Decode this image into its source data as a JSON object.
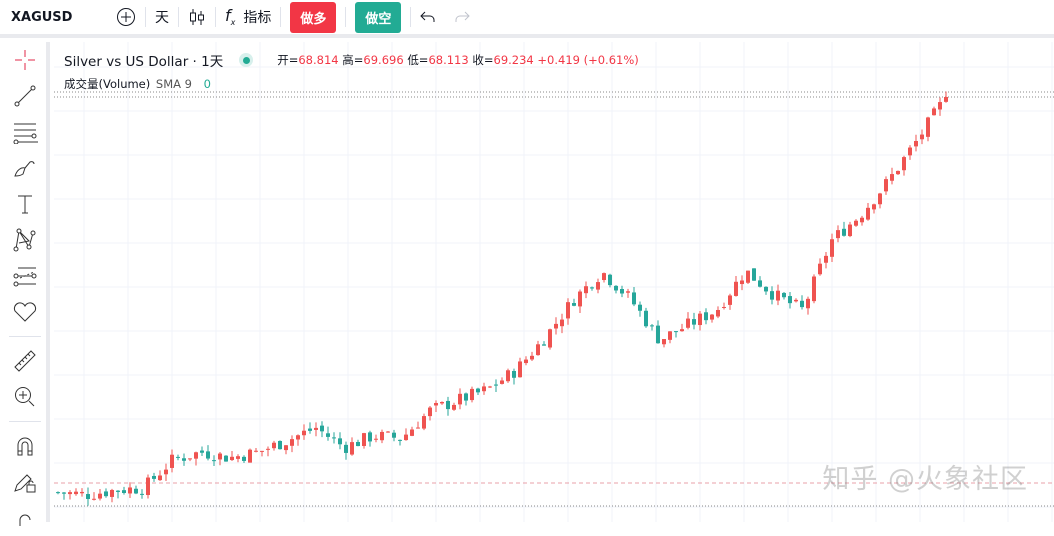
{
  "toolbar": {
    "symbol": "XAGUSD",
    "interval": "天",
    "indicators_label": "指标",
    "long_label": "做多",
    "short_label": "做空"
  },
  "legend": {
    "title": "Silver vs US Dollar · 1天",
    "open_label": "开=",
    "open": "68.814",
    "high_label": "高=",
    "high": "69.696",
    "low_label": "低=",
    "low": "68.113",
    "close_label": "收=",
    "close": "69.234",
    "change": "+0.419 (+0.61%)"
  },
  "volume": {
    "label": "成交量(Volume)",
    "sma": "SMA 9",
    "value": "0"
  },
  "watermark": "知乎 @火象社区",
  "colors": {
    "up": "#ef5350",
    "down": "#26a69a",
    "accent": "#2962ff"
  },
  "chart_data": {
    "type": "candlestick",
    "keypoint_closes": [
      35.0,
      34.8,
      35.2,
      35.4,
      37.8,
      38.5,
      38.0,
      38.5,
      39.5,
      40.6,
      38.9,
      39.9,
      39.7,
      42.1,
      43.0,
      43.9,
      45.6,
      48.4,
      51.7,
      54.1,
      51.7,
      48.2,
      49.5,
      50.8,
      54.2,
      52.1,
      50.8,
      56.8,
      59.0,
      62.0,
      65.5,
      69.234
    ],
    "candle_count": 149,
    "last": {
      "open": 68.814,
      "high": 69.696,
      "low": 68.113,
      "close": 69.234
    }
  }
}
